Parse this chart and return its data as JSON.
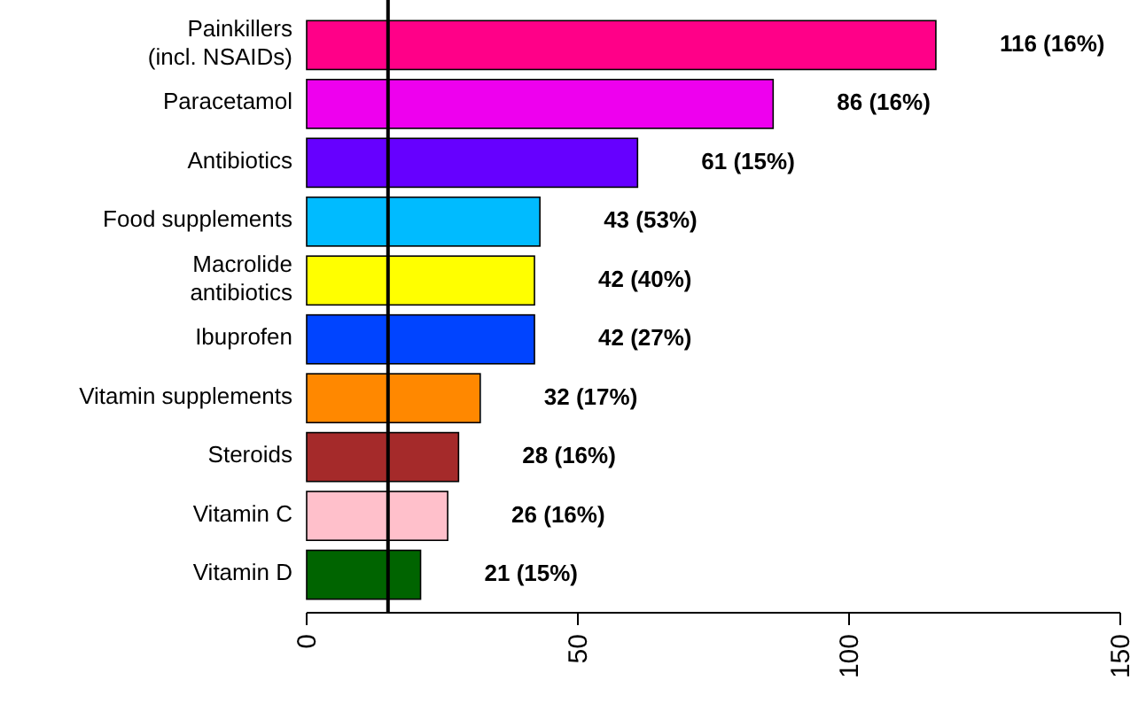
{
  "chart_data": {
    "type": "bar",
    "orientation": "horizontal",
    "categories": [
      "Painkillers\n(incl. NSAIDs)",
      "Paracetamol",
      "Antibiotics",
      "Food supplements",
      "Macrolide\nantibiotics",
      "Ibuprofen",
      "Vitamin supplements",
      "Steroids",
      "Vitamin C",
      "Vitamin D"
    ],
    "values": [
      116,
      86,
      61,
      43,
      42,
      42,
      32,
      28,
      26,
      21
    ],
    "colors": [
      "#ff0088",
      "#ee00ee",
      "#6600ff",
      "#00bbff",
      "#ffff00",
      "#0044ff",
      "#ff8800",
      "#a52a2a",
      "#ffc0cb",
      "#006400"
    ],
    "value_labels": [
      "116 (16%)",
      "86 (16%)",
      "61 (15%)",
      "43 (53%)",
      "42 (40%)",
      "42 (27%)",
      "32 (17%)",
      "28 (16%)",
      "26 (16%)",
      "21 (15%)"
    ],
    "xlim": [
      0,
      150
    ],
    "xticks": [
      0,
      50,
      100,
      150
    ],
    "ref_lines": [
      {
        "axis": "x",
        "value": 15,
        "color": "#000000"
      }
    ]
  }
}
